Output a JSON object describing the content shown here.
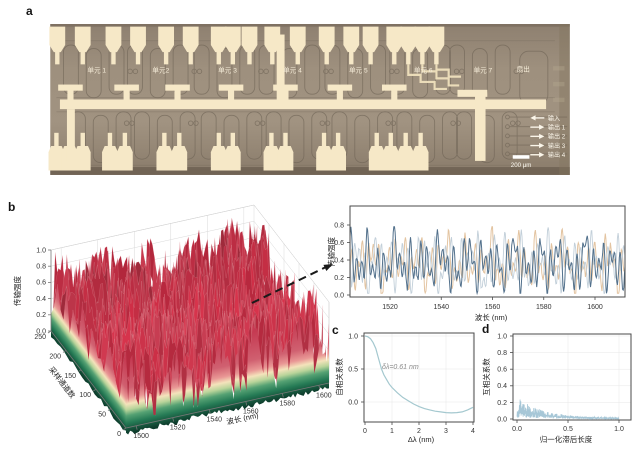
{
  "figure": {
    "panel_labels": {
      "a": "a",
      "b": "b",
      "c": "c",
      "d": "d"
    }
  },
  "panel_a": {
    "type": "chip-micrograph",
    "unit_labels": [
      "单元 1",
      "单元2",
      "单元 3",
      "单元 4",
      "单元 5",
      "单元 6",
      "单元 7"
    ],
    "fanout_label": "扇出",
    "io_annotations": [
      {
        "label": "输入",
        "arrow": "left"
      },
      {
        "label": "输出 1",
        "arrow": "right"
      },
      {
        "label": "输出 2",
        "arrow": "right"
      },
      {
        "label": "输出 3",
        "arrow": "right"
      },
      {
        "label": "输出 4",
        "arrow": "right"
      }
    ],
    "scale_bar_label": "200 μm",
    "colors": {
      "substrate": "#9a8c7a",
      "pads": "#f6e8c7",
      "waveguide": "#6e6355",
      "label_text": "#f7eeda"
    }
  },
  "chart_data": [
    {
      "id": "b_surface",
      "type": "surface3d",
      "xlabel": "波长 (nm)",
      "ylabel": "采样通道数",
      "zlabel": "传输强度",
      "x_ticks": [
        "1500",
        "1520",
        "1540",
        "1560",
        "1580",
        "1600"
      ],
      "y_ticks": [
        "0",
        "50",
        "100",
        "150",
        "200",
        "250"
      ],
      "z_ticks": [
        "0.0",
        "0.2",
        "0.4",
        "0.6",
        "0.8",
        "1.0"
      ],
      "x_range": [
        1500,
        1615
      ],
      "y_range": [
        0,
        255
      ],
      "z_range": [
        0,
        1
      ],
      "noise": {
        "seed": 7,
        "mean": 0.5,
        "amplitude": 0.36
      },
      "colormap_stops": [
        "#c53a52",
        "#d06070",
        "#e99795",
        "#f4e3bb",
        "#b9d49a",
        "#55a173",
        "#257a55",
        "#0d3b2b"
      ]
    },
    {
      "id": "b_inset",
      "type": "line",
      "xlabel": "波长 (nm)",
      "ylabel": "传输强度",
      "x_ticks": [
        "1520",
        "1540",
        "1560",
        "1580",
        "1600"
      ],
      "y_ticks": [
        "0.0",
        "0.2",
        "0.4",
        "0.6",
        "0.8"
      ],
      "x_range": [
        1504,
        1612
      ],
      "y_range": [
        -0.02,
        1.02
      ],
      "grid": false,
      "series": [
        {
          "color": "#e3c4a1",
          "seed": 11,
          "width": 1.0
        },
        {
          "color": "#c2cfd9",
          "seed": 23,
          "width": 0.9
        },
        {
          "color": "#53718c",
          "seed": 5,
          "width": 1.0
        }
      ],
      "gen": {
        "base": 0.36,
        "periods_nm": [
          2.1,
          3.4,
          5.7,
          9.3,
          15.2
        ],
        "amps": [
          0.15,
          0.12,
          0.1,
          0.08,
          0.05
        ],
        "clip": [
          0.02,
          0.78
        ]
      }
    },
    {
      "id": "c_autocorr",
      "type": "line",
      "xlabel": "Δλ (nm)",
      "ylabel": "自相关系数",
      "annotation": "δλ=0.61 nm",
      "x_ticks": [
        "0",
        "1",
        "2",
        "3",
        "4"
      ],
      "y_ticks": [
        "0.0",
        "0.5",
        "1.0"
      ],
      "x_range": [
        0,
        4
      ],
      "y_range": [
        -0.32,
        1.05
      ],
      "grid": true,
      "color": "#a4c8cf",
      "points": [
        [
          0,
          1.0
        ],
        [
          0.1,
          0.99
        ],
        [
          0.2,
          0.96
        ],
        [
          0.3,
          0.9
        ],
        [
          0.4,
          0.81
        ],
        [
          0.5,
          0.66
        ],
        [
          0.61,
          0.5
        ],
        [
          0.7,
          0.41
        ],
        [
          0.8,
          0.34
        ],
        [
          0.9,
          0.27
        ],
        [
          1.0,
          0.22
        ],
        [
          1.2,
          0.14
        ],
        [
          1.4,
          0.07
        ],
        [
          1.6,
          0.02
        ],
        [
          1.8,
          -0.03
        ],
        [
          2.0,
          -0.07
        ],
        [
          2.2,
          -0.1
        ],
        [
          2.4,
          -0.12
        ],
        [
          2.6,
          -0.14
        ],
        [
          2.8,
          -0.15
        ],
        [
          3.0,
          -0.16
        ],
        [
          3.2,
          -0.165
        ],
        [
          3.4,
          -0.16
        ],
        [
          3.6,
          -0.15
        ],
        [
          3.8,
          -0.12
        ],
        [
          4.0,
          -0.08
        ]
      ]
    },
    {
      "id": "d_crosscorr",
      "type": "line",
      "xlabel": "归一化滞后长度",
      "ylabel": "互相关系数",
      "x_ticks": [
        "0.0",
        "0.5",
        "1.0"
      ],
      "y_ticks": [
        "0.0",
        "0.2",
        "0.4",
        "0.6",
        "0.8",
        "1.0"
      ],
      "x_range": [
        0,
        1
      ],
      "y_range": [
        0,
        1
      ],
      "grid": true,
      "color": "#a7c7d7",
      "gen": {
        "seed": 13,
        "n": 300,
        "peak": 0.27,
        "decay": 4.3,
        "floor": 0.016
      }
    }
  ]
}
